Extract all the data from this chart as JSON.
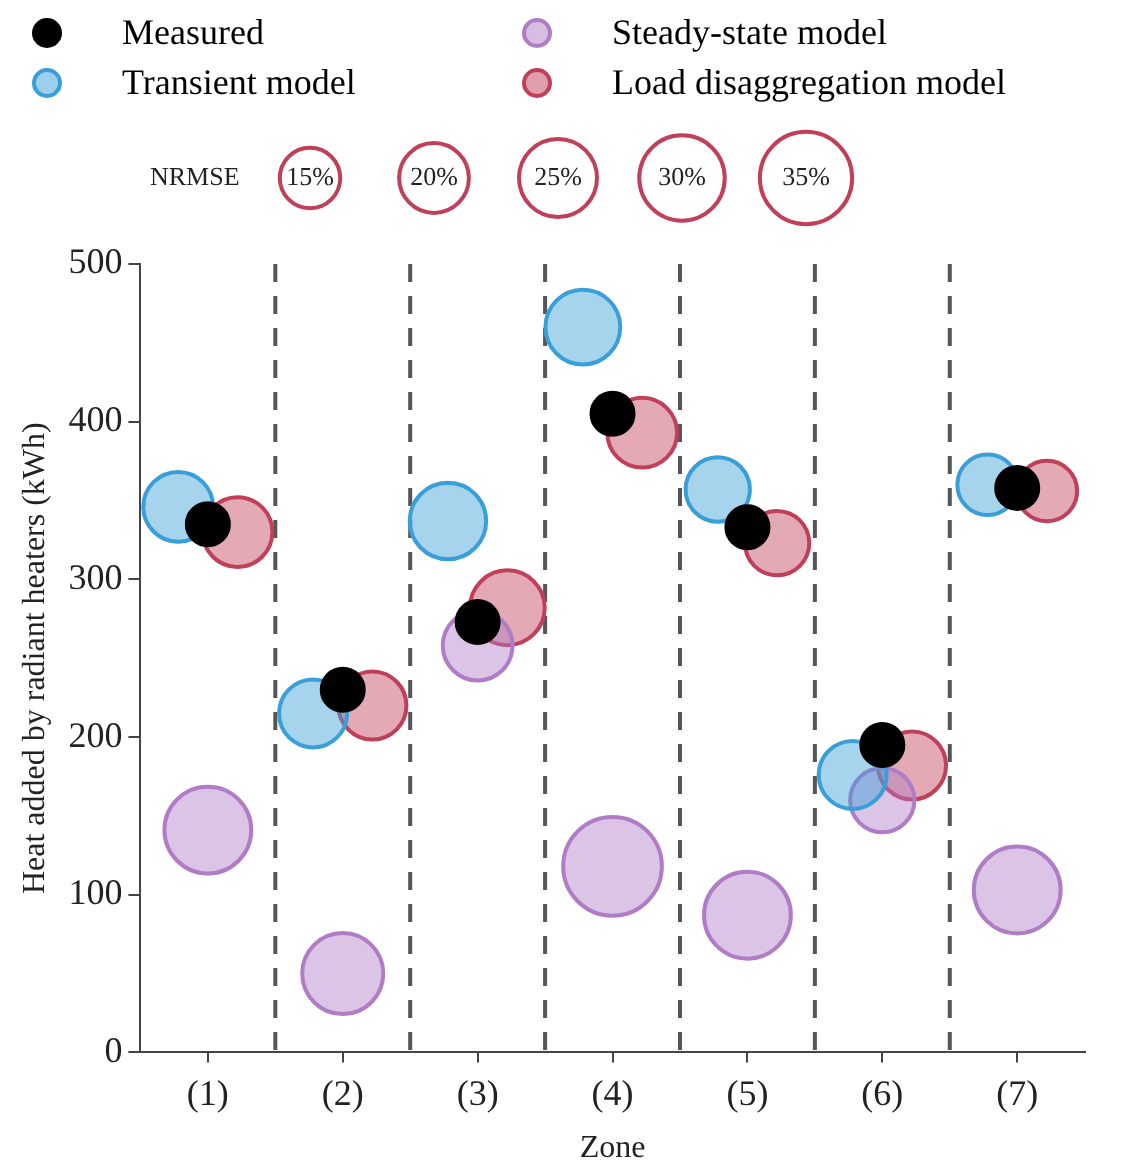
{
  "chart_data": {
    "type": "bubble",
    "xlabel": "Zone",
    "ylabel": "Heat added by radiant heaters (kWh)",
    "categories": [
      "(1)",
      "(2)",
      "(3)",
      "(4)",
      "(5)",
      "(6)",
      "(7)"
    ],
    "ylim": [
      0,
      500
    ],
    "yticks": [
      0,
      100,
      200,
      300,
      400,
      500
    ],
    "grid": "x",
    "legend": "top",
    "annotations": [
      "NRMSE"
    ],
    "size_legend": [
      {
        "value": 15,
        "label": "15%"
      },
      {
        "value": 20,
        "label": "20%"
      },
      {
        "value": 25,
        "label": "25%"
      },
      {
        "value": 30,
        "label": "30%"
      },
      {
        "value": 35,
        "label": "35%"
      }
    ],
    "series": [
      {
        "name": "Measured",
        "type": "scatter",
        "color": "#000000",
        "values": [
          335,
          230,
          273,
          405,
          333,
          195,
          358
        ]
      },
      {
        "name": "Transient model",
        "color": "#3a9fd8",
        "values": [
          346,
          215,
          337,
          460,
          357,
          176,
          360
        ],
        "sizes": [
          20,
          19,
          24,
          23,
          17,
          19,
          15
        ]
      },
      {
        "name": "Steady-state model",
        "color": "#b07cc6",
        "values": [
          141,
          50,
          258,
          118,
          87,
          160,
          103
        ],
        "sizes": [
          31,
          27,
          20,
          40,
          31,
          17,
          31
        ]
      },
      {
        "name": "Load disaggregation model",
        "color": "#c0405a",
        "values": [
          330,
          220,
          282,
          393,
          323,
          182,
          356
        ],
        "sizes": [
          20,
          19,
          23,
          20,
          17,
          19,
          15
        ]
      }
    ]
  }
}
